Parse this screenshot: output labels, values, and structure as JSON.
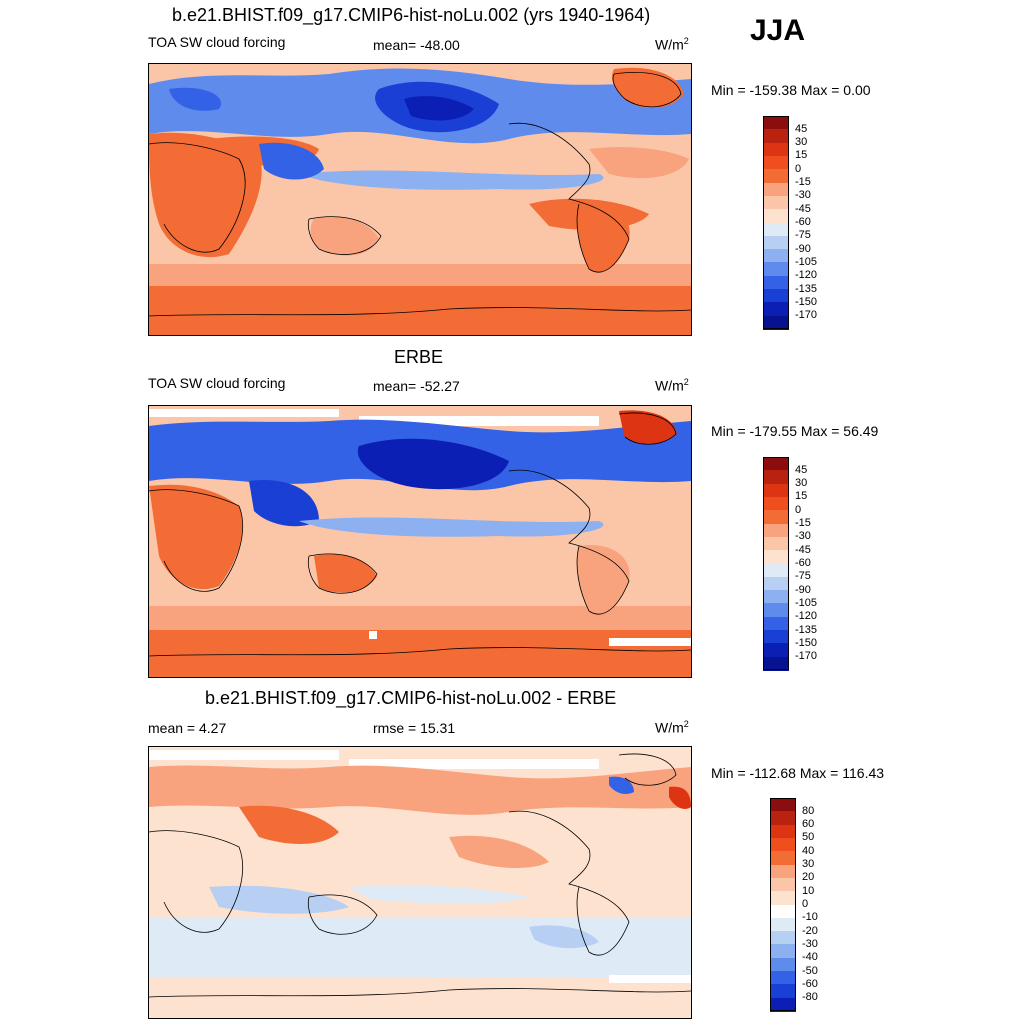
{
  "season": "JJA",
  "panels": [
    {
      "title": "b.e21.BHIST.f09_g17.CMIP6-hist-noLu.002 (yrs 1940-1964)",
      "left_label": "TOA SW cloud forcing",
      "center_label": "mean= -48.00",
      "units_base": "W/m",
      "units_exp": "2",
      "minmax": "Min = -159.38 Max =    0.00",
      "colorbar_ticks": [
        "45",
        "30",
        "15",
        "0",
        "-15",
        "-30",
        "-45",
        "-60",
        "-75",
        "-90",
        "-105",
        "-120",
        "-135",
        "-150",
        "-170"
      ]
    },
    {
      "title": "ERBE",
      "left_label": "TOA SW cloud forcing",
      "center_label": "mean= -52.27",
      "units_base": "W/m",
      "units_exp": "2",
      "minmax": "Min = -179.55 Max =  56.49",
      "colorbar_ticks": [
        "45",
        "30",
        "15",
        "0",
        "-15",
        "-30",
        "-45",
        "-60",
        "-75",
        "-90",
        "-105",
        "-120",
        "-135",
        "-150",
        "-170"
      ]
    },
    {
      "title": "b.e21.BHIST.f09_g17.CMIP6-hist-noLu.002 - ERBE",
      "left_label": "mean =   4.27",
      "center_label": "rmse =  15.31",
      "units_base": "W/m",
      "units_exp": "2",
      "minmax": "Min = -112.68 Max = 116.43",
      "colorbar_ticks": [
        "80",
        "60",
        "50",
        "40",
        "30",
        "20",
        "10",
        "0",
        "-10",
        "-20",
        "-30",
        "-40",
        "-50",
        "-60",
        "-80"
      ]
    }
  ],
  "colors": {
    "forcing_scale": [
      "#8c0d0d",
      "#b8220e",
      "#dd3413",
      "#f04e1e",
      "#f36b35",
      "#f8a37e",
      "#fbc6a8",
      "#fde2cf",
      "#dfeaf7",
      "#b7cff2",
      "#8db0f0",
      "#5f8cec",
      "#3362e6",
      "#1a3fd4",
      "#0b1fb5",
      "#06128f"
    ],
    "diff_scale": [
      "#8c0d0d",
      "#b8220e",
      "#dd3413",
      "#f04e1e",
      "#f36b35",
      "#f8a37e",
      "#fbc6a8",
      "#fde2cf",
      "#ffffff",
      "#dfeaf7",
      "#b7cff2",
      "#8db0f0",
      "#5f8cec",
      "#3362e6",
      "#1a3fd4",
      "#0b1fb5",
      "#06128f"
    ]
  },
  "chart_data": [
    {
      "type": "heatmap",
      "title": "b.e21.BHIST.f09_g17.CMIP6-hist-noLu.002 (yrs 1940-1964)",
      "subtitle": "TOA SW cloud forcing",
      "units": "W/m2",
      "season": "JJA",
      "mean": -48.0,
      "min": -159.38,
      "max": 0.0,
      "levels": [
        45,
        30,
        15,
        0,
        -15,
        -30,
        -45,
        -60,
        -75,
        -90,
        -105,
        -120,
        -135,
        -150,
        -170
      ]
    },
    {
      "type": "heatmap",
      "title": "ERBE",
      "subtitle": "TOA SW cloud forcing",
      "units": "W/m2",
      "mean": -52.27,
      "min": -179.55,
      "max": 56.49,
      "levels": [
        45,
        30,
        15,
        0,
        -15,
        -30,
        -45,
        -60,
        -75,
        -90,
        -105,
        -120,
        -135,
        -150,
        -170
      ]
    },
    {
      "type": "heatmap",
      "title": "b.e21.BHIST.f09_g17.CMIP6-hist-noLu.002 - ERBE",
      "units": "W/m2",
      "mean": 4.27,
      "rmse": 15.31,
      "min": -112.68,
      "max": 116.43,
      "levels": [
        80,
        60,
        50,
        40,
        30,
        20,
        10,
        0,
        -10,
        -20,
        -30,
        -40,
        -50,
        -60,
        -80
      ]
    }
  ]
}
